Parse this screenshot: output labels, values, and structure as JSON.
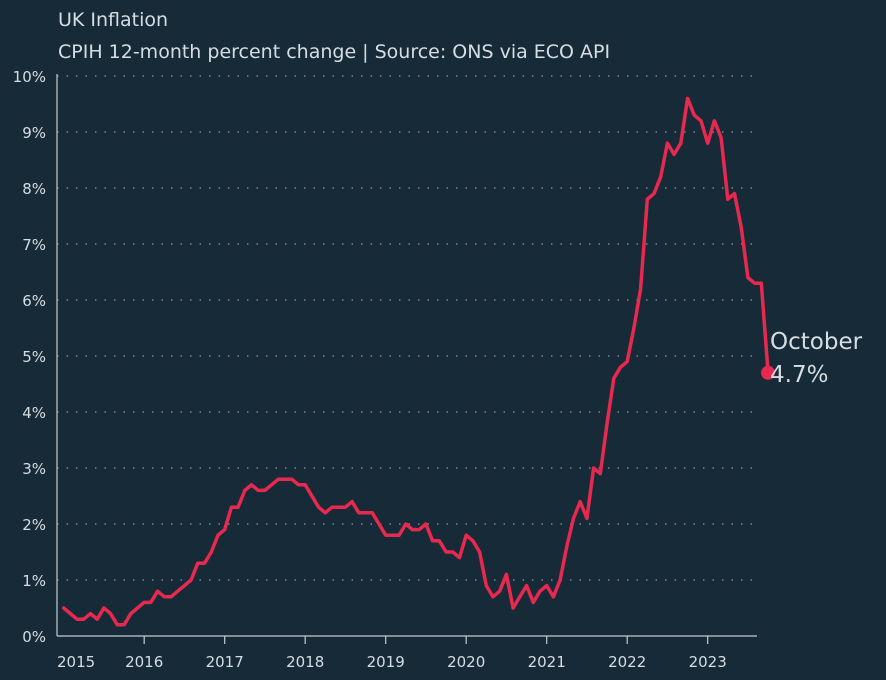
{
  "chart_data": {
    "type": "line",
    "title": "UK Inflation",
    "subtitle": "CPIH 12-month percent change | Source: ONS via ECO API",
    "xlabel": "",
    "ylabel": "",
    "ylim": [
      0,
      10
    ],
    "y_ticks": [
      "0%",
      "1%",
      "2%",
      "3%",
      "4%",
      "5%",
      "6%",
      "7%",
      "8%",
      "9%",
      "10%"
    ],
    "x_ticks": [
      "2015",
      "2016",
      "2017",
      "2018",
      "2019",
      "2020",
      "2021",
      "2022",
      "2023"
    ],
    "grid": "horizontal dotted",
    "series": [
      {
        "color": "#e8294f",
        "start_year": 2015,
        "start_month": 1,
        "values": [
          0.5,
          0.4,
          0.3,
          0.3,
          0.4,
          0.3,
          0.5,
          0.4,
          0.2,
          0.2,
          0.4,
          0.5,
          0.6,
          0.6,
          0.8,
          0.7,
          0.7,
          0.8,
          0.9,
          1.0,
          1.3,
          1.3,
          1.5,
          1.8,
          1.9,
          2.3,
          2.3,
          2.6,
          2.7,
          2.6,
          2.6,
          2.7,
          2.8,
          2.8,
          2.8,
          2.7,
          2.7,
          2.5,
          2.3,
          2.2,
          2.3,
          2.3,
          2.3,
          2.4,
          2.2,
          2.2,
          2.2,
          2.0,
          1.8,
          1.8,
          1.8,
          2.0,
          1.9,
          1.9,
          2.0,
          1.7,
          1.7,
          1.5,
          1.5,
          1.4,
          1.8,
          1.7,
          1.5,
          0.9,
          0.7,
          0.8,
          1.1,
          0.5,
          0.7,
          0.9,
          0.6,
          0.8,
          0.9,
          0.7,
          1.0,
          1.6,
          2.1,
          2.4,
          2.1,
          3.0,
          2.9,
          3.8,
          4.6,
          4.8,
          4.9,
          5.5,
          6.2,
          7.8,
          7.9,
          8.2,
          8.8,
          8.6,
          8.8,
          9.6,
          9.3,
          9.2,
          8.8,
          9.2,
          8.9,
          7.8,
          7.9,
          7.3,
          6.4,
          6.3,
          6.3,
          4.7
        ]
      }
    ],
    "annotation": {
      "label": "October",
      "value_label": "4.7%",
      "x": "2023-10",
      "y": 4.7
    }
  }
}
